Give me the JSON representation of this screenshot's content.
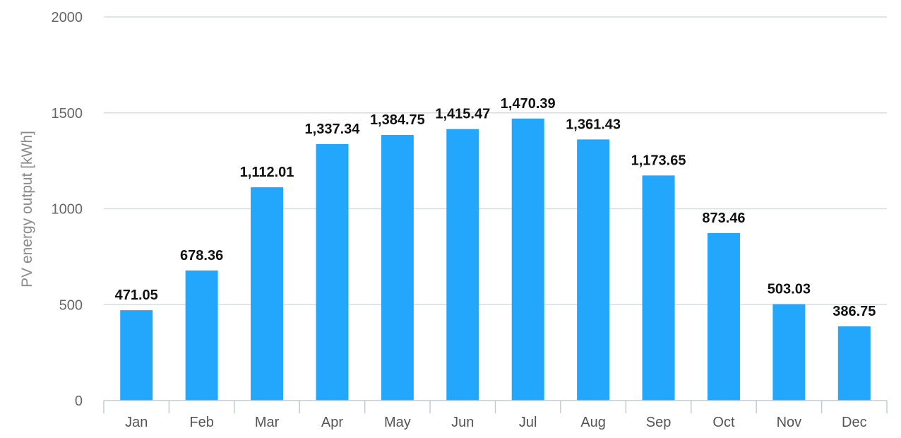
{
  "chart_data": {
    "type": "bar",
    "title": "",
    "xlabel": "",
    "ylabel": "PV energy output [kWh]",
    "categories": [
      "Jan",
      "Feb",
      "Mar",
      "Apr",
      "May",
      "Jun",
      "Jul",
      "Aug",
      "Sep",
      "Oct",
      "Nov",
      "Dec"
    ],
    "values": [
      471.05,
      678.36,
      1112.01,
      1337.34,
      1384.75,
      1415.47,
      1470.39,
      1361.43,
      1173.65,
      873.46,
      503.03,
      386.75
    ],
    "value_labels": [
      "471.05",
      "678.36",
      "1,112.01",
      "1,337.34",
      "1,384.75",
      "1,415.47",
      "1,470.39",
      "1,361.43",
      "1,173.65",
      "873.46",
      "503.03",
      "386.75"
    ],
    "ylim": [
      0,
      2000
    ],
    "yticks": [
      "0",
      "500",
      "1000",
      "1500",
      "2000"
    ],
    "grid": true,
    "legend": "none",
    "colors": {
      "bar": "#22a7fd",
      "grid": "#d7dce0",
      "axis": "#c2cbd3"
    }
  }
}
